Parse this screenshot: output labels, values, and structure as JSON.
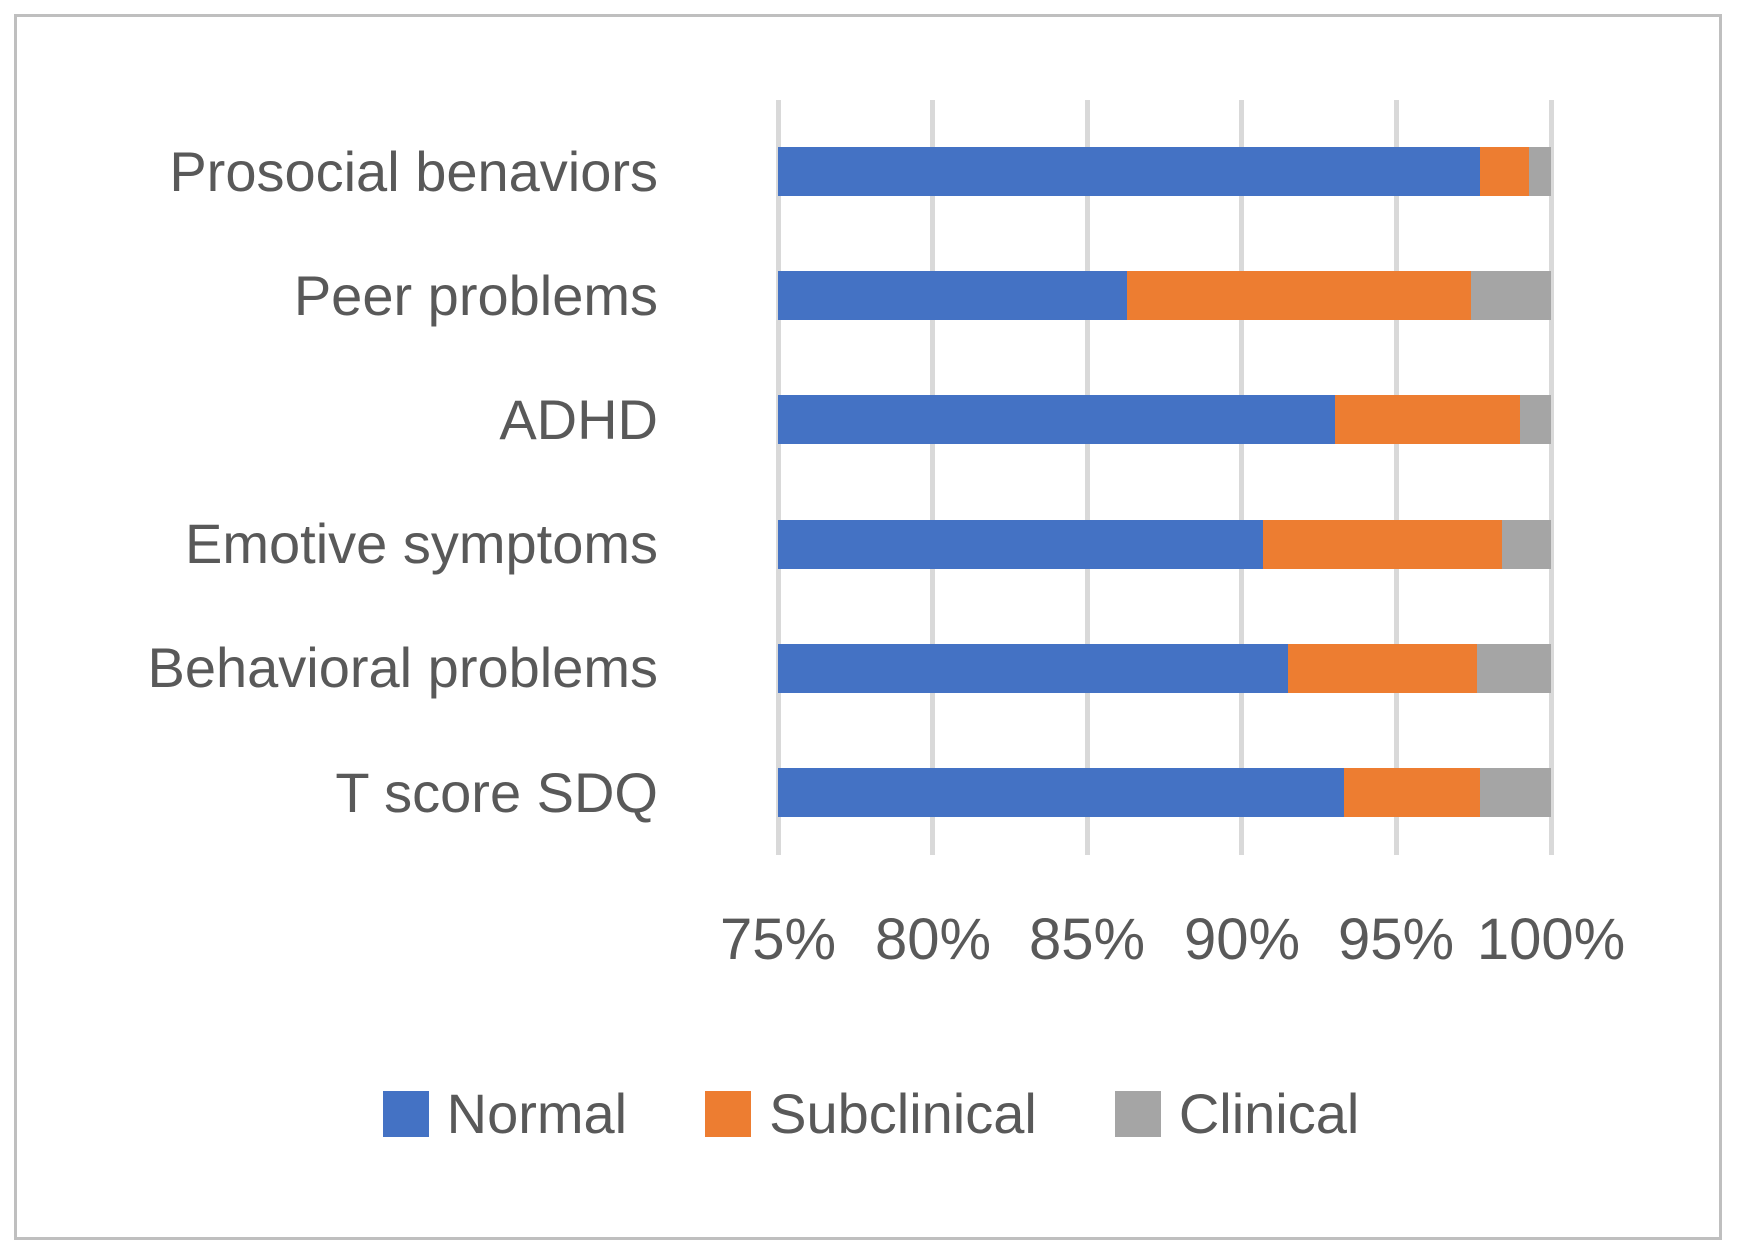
{
  "figure": {
    "background_color": "#FFFFFF",
    "border_color": "#BFBFBF",
    "text_color": "#595959",
    "gridline_color": "#D9D9D9"
  },
  "chart_data": {
    "type": "bar",
    "orientation": "horizontal",
    "stacked": true,
    "stacked_to_100_percent": true,
    "title": "",
    "xlabel": "",
    "ylabel": "",
    "categories": [
      "Prosocial benaviors",
      "Peer problems",
      "ADHD",
      "Emotive symptoms",
      "Behavioral problems",
      "T score SDQ"
    ],
    "series": [
      {
        "name": "Normal",
        "color": "#4472C4",
        "values": [
          97.7,
          86.3,
          93.0,
          90.7,
          91.5,
          93.3
        ]
      },
      {
        "name": "Subclinical",
        "color": "#ED7D31",
        "values": [
          1.6,
          11.1,
          6.0,
          7.7,
          6.1,
          4.4
        ]
      },
      {
        "name": "Clinical",
        "color": "#A5A5A5",
        "values": [
          0.7,
          2.6,
          1.0,
          1.6,
          2.4,
          2.3
        ]
      }
    ],
    "x_axis": {
      "min": 75,
      "max": 100,
      "step": 5,
      "tick_labels": [
        "75%",
        "80%",
        "85%",
        "90%",
        "95%",
        "100%"
      ]
    },
    "grid": true,
    "legend": {
      "position": "bottom",
      "entries": [
        "Normal",
        "Subclinical",
        "Clinical"
      ]
    }
  }
}
